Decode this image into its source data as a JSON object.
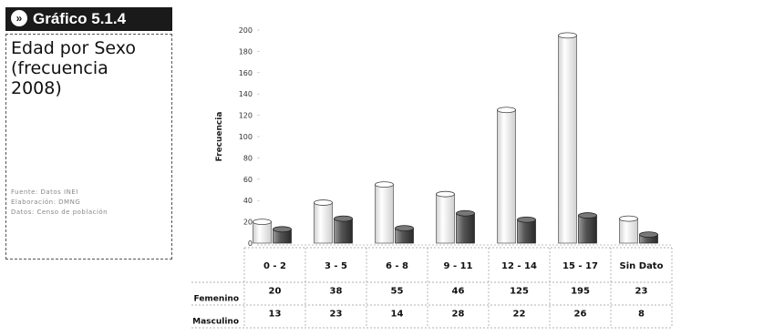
{
  "badge": {
    "label": "Gráfico  5.1.4",
    "icon": "double-chevron-right-icon"
  },
  "infobox": {
    "title_lines": [
      "Edad por Sexo",
      "(frecuencia",
      "2008)"
    ],
    "source_lines": [
      "Fuente: Datos INEI",
      "Elaboración: DMNG",
      "Datos: Censo de población"
    ]
  },
  "chart_data": {
    "type": "bar",
    "ylabel": "Frecuencia",
    "ylim": [
      0,
      200
    ],
    "yticks": [
      0,
      20,
      40,
      60,
      80,
      100,
      120,
      140,
      160,
      180,
      200
    ],
    "categories": [
      "0 - 2",
      "3 - 5",
      "6 - 8",
      "9 - 11",
      "12 - 14",
      "15 - 17",
      "Sin Dato"
    ],
    "series": [
      {
        "name": "Femenino",
        "values": [
          20,
          38,
          55,
          46,
          125,
          195,
          23
        ],
        "color": "#f4f4f4"
      },
      {
        "name": "Masculino",
        "values": [
          13,
          23,
          14,
          28,
          22,
          26,
          8
        ],
        "color": "#5a5a5a"
      }
    ],
    "grid": false,
    "legend": "table-below"
  }
}
